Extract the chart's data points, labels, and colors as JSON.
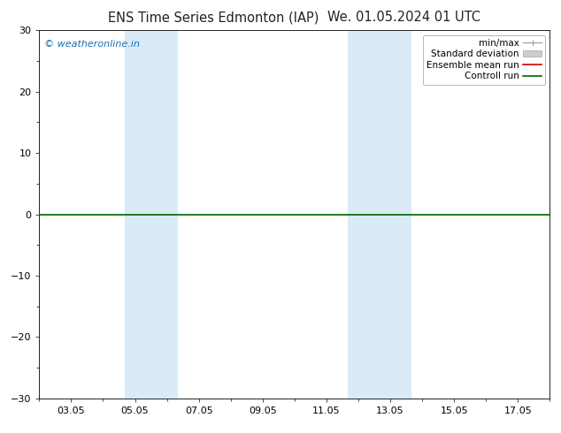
{
  "title_left": "ENS Time Series Edmonton (IAP)",
  "title_right": "We. 01.05.2024 01 UTC",
  "watermark": "© weatheronline.in",
  "ylim": [
    -30,
    30
  ],
  "yticks": [
    -30,
    -20,
    -10,
    0,
    10,
    20,
    30
  ],
  "xtick_labels": [
    "03.05",
    "05.05",
    "07.05",
    "09.05",
    "11.05",
    "13.05",
    "15.05",
    "17.05"
  ],
  "xtick_positions": [
    2,
    4,
    6,
    8,
    10,
    12,
    14,
    16
  ],
  "xlim": [
    1,
    17
  ],
  "shaded_bands": [
    {
      "xmin": 3.67,
      "xmax": 5.33,
      "color": "#daeaf7"
    },
    {
      "xmin": 10.67,
      "xmax": 12.67,
      "color": "#daeaf7"
    }
  ],
  "zero_line_color": "#006400",
  "zero_line_lw": 1.2,
  "legend_items": [
    {
      "label": "min/max",
      "color": "#aaaaaa",
      "lw": 1.0,
      "style": "minmax"
    },
    {
      "label": "Standard deviation",
      "color": "#cccccc",
      "lw": 8,
      "style": "band"
    },
    {
      "label": "Ensemble mean run",
      "color": "#cc0000",
      "lw": 1.2,
      "style": "line"
    },
    {
      "label": "Controll run",
      "color": "#006400",
      "lw": 1.2,
      "style": "line"
    }
  ],
  "background_color": "#ffffff",
  "plot_bg_color": "#ffffff",
  "title_fontsize": 10.5,
  "tick_fontsize": 8,
  "legend_fontsize": 7.5,
  "watermark_color": "#1a6faf",
  "watermark_fontsize": 8
}
